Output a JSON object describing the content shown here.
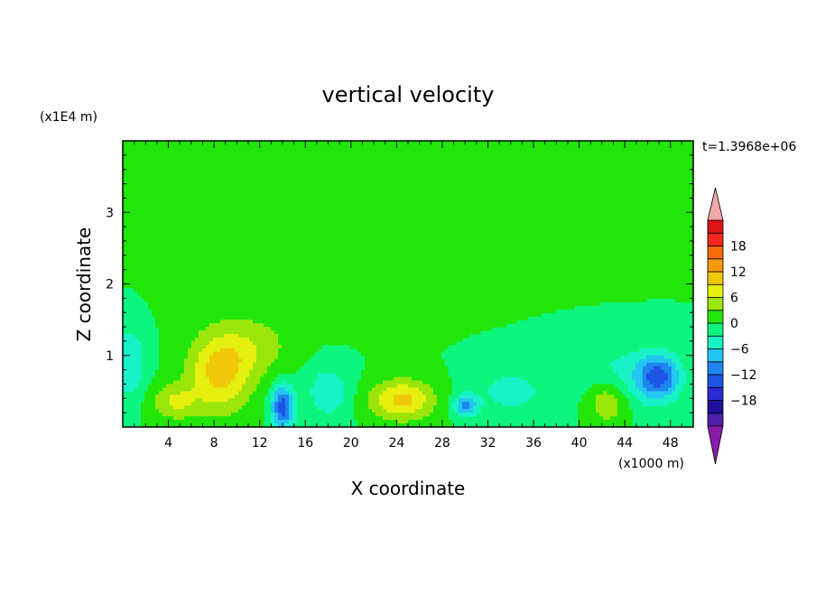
{
  "chart_data": {
    "type": "heatmap",
    "title": "vertical velocity",
    "xlabel": "X coordinate",
    "ylabel": "Z coordinate",
    "x_scale_label": "(x1000 m)",
    "y_scale_label": "(x1E4 m)",
    "time_label": "t=1.3968e+06",
    "xlim": [
      0,
      50
    ],
    "ylim": [
      0,
      4
    ],
    "x_ticks": [
      4,
      8,
      12,
      16,
      20,
      24,
      28,
      32,
      36,
      40,
      44,
      48
    ],
    "y_ticks": [
      1,
      2,
      3
    ],
    "colorbar": {
      "levels": [
        -21,
        -18,
        -15,
        -12,
        -9,
        -6,
        -3,
        0,
        3,
        6,
        9,
        12,
        15,
        18,
        21
      ],
      "tick_values": [
        -18,
        -12,
        -6,
        0,
        6,
        12,
        18
      ],
      "tick_labels": [
        "−18",
        "−12",
        "−6",
        "0",
        "6",
        "12",
        "18"
      ],
      "colors": [
        "#4b1fa8",
        "#1f0f9c",
        "#2a2ad4",
        "#1f55e6",
        "#1f86f0",
        "#23c6f0",
        "#19f2c6",
        "#0cf57f",
        "#22e60a",
        "#9be60a",
        "#e6f00f",
        "#f0c80a",
        "#f59a0a",
        "#f56a0a",
        "#f0281e",
        "#e01414"
      ],
      "under_color": "#8a1aa8",
      "over_color": "#f0a8a8",
      "extend": "both"
    },
    "background_color": "#0cf57f",
    "features": [
      {
        "kind": "updraft",
        "x": 8.5,
        "z": 0.75,
        "amplitude": 10,
        "sx": 2.8,
        "sz": 0.55
      },
      {
        "kind": "updraft",
        "x": 24.5,
        "z": 0.38,
        "amplitude": 10,
        "sx": 2.8,
        "sz": 0.28
      },
      {
        "kind": "updraft",
        "x": 4.5,
        "z": 0.35,
        "amplitude": 6,
        "sx": 2.0,
        "sz": 0.25
      },
      {
        "kind": "updraft",
        "x": 42.5,
        "z": 0.35,
        "amplitude": 7,
        "sx": 1.8,
        "sz": 0.3
      },
      {
        "kind": "updraft",
        "x": 11.5,
        "z": 1.1,
        "amplitude": 4,
        "sx": 3.5,
        "sz": 0.4
      },
      {
        "kind": "downdraft",
        "x": 14.0,
        "z": 0.28,
        "amplitude": -14,
        "sx": 1.0,
        "sz": 0.3
      },
      {
        "kind": "downdraft",
        "x": 47.0,
        "z": 0.7,
        "amplitude": -12,
        "sx": 1.8,
        "sz": 0.3
      },
      {
        "kind": "downdraft",
        "x": 30.0,
        "z": 0.3,
        "amplitude": -9,
        "sx": 1.1,
        "sz": 0.15
      },
      {
        "kind": "downdraft",
        "x": 0.5,
        "z": 0.9,
        "amplitude": -6,
        "sx": 1.5,
        "sz": 0.5
      },
      {
        "kind": "downdraft",
        "x": 18.0,
        "z": 0.5,
        "amplitude": -5,
        "sx": 2.0,
        "sz": 0.4
      },
      {
        "kind": "downdraft",
        "x": 34.0,
        "z": 0.5,
        "amplitude": -4,
        "sx": 3.5,
        "sz": 0.35
      },
      {
        "kind": "downdraft",
        "x": 44.0,
        "z": 0.7,
        "amplitude": -4,
        "sx": 4.0,
        "sz": 0.5
      },
      {
        "kind": "weak-updraft",
        "x": 15.0,
        "z": 2.0,
        "amplitude": 2,
        "sx": 8.0,
        "sz": 0.6
      },
      {
        "kind": "weak-updraft",
        "x": 40.0,
        "z": 2.4,
        "amplitude": 2,
        "sx": 6.0,
        "sz": 0.35
      },
      {
        "kind": "weak-updraft",
        "x": 6.0,
        "z": 3.05,
        "amplitude": 2,
        "sx": 6.0,
        "sz": 0.08
      }
    ]
  }
}
